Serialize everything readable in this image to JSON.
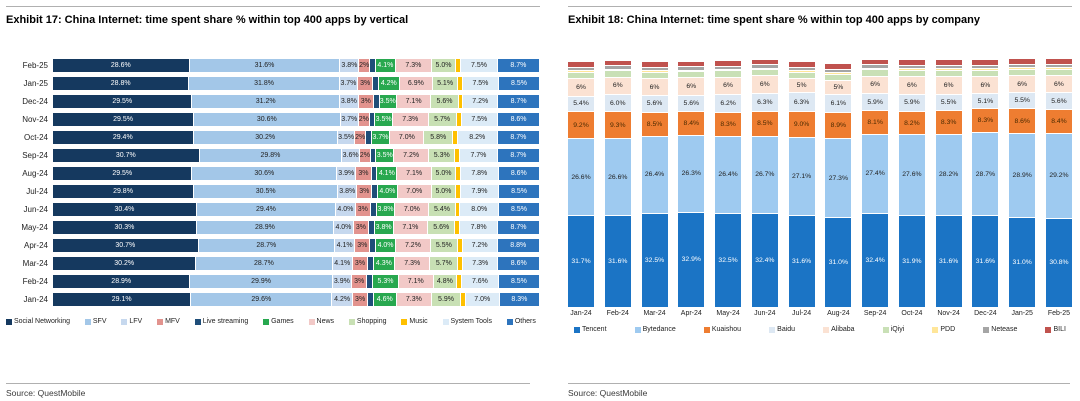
{
  "source_note": "Source: QuestMobile",
  "chart_data": [
    {
      "type": "bar",
      "orientation": "horizontal-stacked",
      "title": "Exhibit 17: China Internet: time spent share % within top 400 apps by vertical",
      "source": "Source: QuestMobile",
      "xlabel": "",
      "ylabel": "",
      "xlim": [
        0,
        100
      ],
      "grid": false,
      "legend_position": "bottom",
      "categories": [
        "Feb-25",
        "Jan-25",
        "Dec-24",
        "Nov-24",
        "Oct-24",
        "Sep-24",
        "Aug-24",
        "Jul-24",
        "Jun-24",
        "May-24",
        "Apr-24",
        "Mar-24",
        "Feb-24",
        "Jan-24"
      ],
      "series": [
        {
          "name": "Social Networking",
          "color": "#15395f",
          "text_color": "#ffffff",
          "label": "1dp",
          "values": [
            28.6,
            28.8,
            29.5,
            29.5,
            29.4,
            30.7,
            29.5,
            29.8,
            30.4,
            30.3,
            30.7,
            30.2,
            28.9,
            29.1
          ]
        },
        {
          "name": "SFV",
          "color": "#a3c7e8",
          "text_color": "#222222",
          "label": "1dp",
          "values": [
            31.6,
            31.8,
            31.2,
            30.6,
            30.2,
            29.8,
            30.6,
            30.5,
            29.4,
            28.9,
            28.7,
            28.7,
            29.9,
            29.6
          ]
        },
        {
          "name": "LFV",
          "color": "#c6d8ee",
          "text_color": "#222222",
          "label": "1dp",
          "values": [
            3.8,
            3.7,
            3.8,
            3.7,
            3.5,
            3.6,
            3.9,
            3.8,
            4.0,
            4.0,
            4.1,
            4.1,
            3.9,
            4.2
          ]
        },
        {
          "name": "MFV",
          "color": "#e2938e",
          "text_color": "#222222",
          "label": "int",
          "values": [
            2,
            3,
            3,
            2,
            2,
            2,
            3,
            3,
            3,
            3,
            3,
            3,
            3,
            3
          ]
        },
        {
          "name": "Live streaming",
          "color": "#1f4e79",
          "text_color": "#ffffff",
          "label": "none",
          "values": [
            1,
            1,
            1,
            1,
            1,
            1,
            1,
            1,
            1,
            1,
            1,
            1,
            1,
            1
          ]
        },
        {
          "name": "Games",
          "color": "#28a84f",
          "text_color": "#ffffff",
          "label": "1dp",
          "values": [
            4.1,
            4.2,
            3.5,
            3.5,
            3.7,
            3.5,
            4.1,
            4.0,
            3.8,
            3.8,
            4.0,
            4.3,
            5.3,
            4.6
          ]
        },
        {
          "name": "News",
          "color": "#f2c9c7",
          "text_color": "#222222",
          "label": "1dp",
          "values": [
            7.3,
            6.9,
            7.1,
            7.3,
            7.0,
            7.2,
            7.1,
            7.0,
            7.0,
            7.1,
            7.2,
            7.3,
            7.1,
            7.3
          ]
        },
        {
          "name": "Shopping",
          "color": "#c8e0b4",
          "text_color": "#222222",
          "label": "1dp",
          "values": [
            5.0,
            5.1,
            5.6,
            5.7,
            5.8,
            5.3,
            5.0,
            5.0,
            5.4,
            5.6,
            5.5,
            5.7,
            4.8,
            5.9
          ]
        },
        {
          "name": "Music",
          "color": "#fec000",
          "text_color": "#222222",
          "label": "none",
          "values": [
            0.8,
            0.8,
            0.8,
            0.8,
            0.8,
            0.8,
            0.8,
            0.8,
            0.8,
            0.8,
            0.8,
            0.8,
            0.8,
            0.8
          ]
        },
        {
          "name": "System Tools",
          "color": "#dcebf7",
          "text_color": "#222222",
          "label": "1dp",
          "values": [
            7.5,
            7.5,
            7.2,
            7.5,
            8.2,
            7.7,
            7.8,
            7.9,
            8.0,
            7.8,
            7.2,
            7.3,
            7.6,
            7.0
          ]
        },
        {
          "name": "Others",
          "color": "#2d74bd",
          "text_color": "#ffffff",
          "label": "1dp",
          "values": [
            8.7,
            8.5,
            8.7,
            8.6,
            8.7,
            8.7,
            8.6,
            8.5,
            8.5,
            8.7,
            8.8,
            8.6,
            8.5,
            8.3
          ]
        }
      ]
    },
    {
      "type": "bar",
      "orientation": "vertical-stacked",
      "title": "Exhibit 18: China Internet: time spent share % within top 400 apps by company",
      "source": "Source: QuestMobile",
      "xlabel": "",
      "ylabel": "",
      "grid": false,
      "legend_position": "bottom",
      "categories": [
        "Jan-24",
        "Feb-24",
        "Mar-24",
        "Apr-24",
        "May-24",
        "Jun-24",
        "Jul-24",
        "Aug-24",
        "Sep-24",
        "Oct-24",
        "Nov-24",
        "Dec-24",
        "Jan-25",
        "Feb-25"
      ],
      "series": [
        {
          "name": "Tencent",
          "color": "#1b74c5",
          "text_color": "#ffffff",
          "label": "1dp",
          "values": [
            31.7,
            31.6,
            32.5,
            32.9,
            32.5,
            32.4,
            31.6,
            31.0,
            32.4,
            31.9,
            31.6,
            31.6,
            31.0,
            30.8
          ]
        },
        {
          "name": "Bytedance",
          "color": "#9ecaf0",
          "text_color": "#222222",
          "label": "1dp",
          "values": [
            26.6,
            26.6,
            26.4,
            26.3,
            26.4,
            26.7,
            27.1,
            27.3,
            27.4,
            27.6,
            28.2,
            28.7,
            28.9,
            29.2
          ]
        },
        {
          "name": "Kuaishou",
          "color": "#ee7d31",
          "text_color": "#4a2a00",
          "label": "1dp",
          "values": [
            9.2,
            9.3,
            8.5,
            8.4,
            8.3,
            8.5,
            9.0,
            8.9,
            8.1,
            8.2,
            8.3,
            8.3,
            8.6,
            8.4
          ]
        },
        {
          "name": "Baidu",
          "color": "#dde8f3",
          "text_color": "#222222",
          "label": "1dp",
          "values": [
            5.4,
            6.0,
            5.6,
            5.6,
            6.2,
            6.3,
            6.3,
            6.1,
            5.9,
            5.9,
            5.5,
            5.1,
            5.5,
            5.6
          ]
        },
        {
          "name": "Alibaba",
          "color": "#fbe2d3",
          "text_color": "#222222",
          "label": "int",
          "values": [
            6,
            6,
            6,
            6,
            6,
            6,
            5,
            5,
            6,
            6,
            6,
            6,
            6,
            6
          ]
        },
        {
          "name": "iQiyi",
          "color": "#c9e0b6",
          "text_color": "#222222",
          "label": "none",
          "values": [
            2.2,
            2.2,
            2.2,
            2.2,
            2.2,
            2.2,
            2.2,
            2.2,
            2.2,
            2.2,
            2.2,
            2.2,
            2.2,
            2.2
          ]
        },
        {
          "name": "PDD",
          "color": "#ffe699",
          "text_color": "#222222",
          "label": "none",
          "values": [
            0.5,
            0.5,
            0.5,
            0.5,
            0.5,
            0.5,
            0.5,
            0.5,
            0.5,
            0.5,
            0.5,
            0.5,
            0.5,
            0.5
          ]
        },
        {
          "name": "Netease",
          "color": "#a5a5a5",
          "text_color": "#222222",
          "label": "none",
          "values": [
            1.2,
            1.2,
            1.2,
            1.2,
            1.2,
            1.2,
            1.2,
            1.2,
            1.2,
            1.2,
            1.2,
            1.2,
            1.2,
            1.2
          ]
        },
        {
          "name": "BILI",
          "color": "#c0524e",
          "text_color": "#ffffff",
          "label": "none",
          "values": [
            1.9,
            1.9,
            1.9,
            1.9,
            1.9,
            1.9,
            1.9,
            1.9,
            1.9,
            1.9,
            1.9,
            1.9,
            1.9,
            1.9
          ]
        }
      ]
    }
  ]
}
